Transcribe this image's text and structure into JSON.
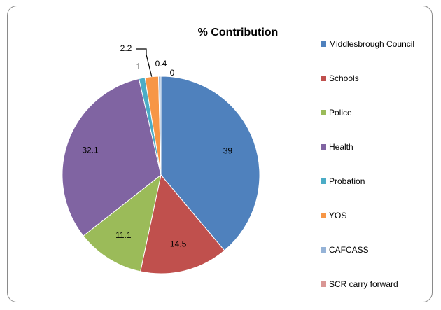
{
  "chart_data": {
    "type": "pie",
    "title": "% Contribution",
    "categories": [
      "Middlesbrough Council",
      "Schools",
      "Police",
      "Health",
      "Probation",
      "YOS",
      "CAFCASS",
      "SCR carry forward"
    ],
    "values": [
      39,
      14.5,
      11.1,
      32.1,
      1,
      2.2,
      0.4,
      0
    ],
    "data_labels": [
      "39",
      "14.5",
      "11.1",
      "32.1",
      "1",
      "2.2",
      "0.4",
      "0"
    ],
    "colors": [
      "#4f81bd",
      "#c0504d",
      "#9bbb59",
      "#8064a2",
      "#4bacc6",
      "#f79646",
      "#95b3d7",
      "#d99694"
    ],
    "legend_position": "right"
  }
}
